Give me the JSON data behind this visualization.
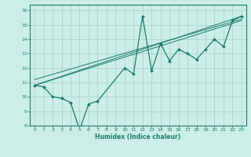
{
  "xlabel": "Humidex (Indice chaleur)",
  "ylabel": "",
  "bg_color": "#cceee8",
  "line_color": "#1a7a6a",
  "grid_color": "#aad4cc",
  "xlim": [
    -0.5,
    23.5
  ],
  "ylim": [
    8,
    16.4
  ],
  "xticks": [
    0,
    1,
    2,
    3,
    4,
    5,
    6,
    7,
    8,
    9,
    10,
    11,
    12,
    13,
    14,
    15,
    16,
    17,
    18,
    19,
    20,
    21,
    22,
    23
  ],
  "yticks": [
    8,
    9,
    10,
    11,
    12,
    13,
    14,
    15,
    16
  ],
  "curve_x": [
    0,
    1,
    2,
    3,
    4,
    5,
    6,
    7,
    10,
    11,
    12,
    13,
    14,
    15,
    16,
    17,
    18,
    19,
    20,
    21,
    22,
    23
  ],
  "curve_y": [
    10.8,
    10.7,
    10.0,
    9.9,
    9.6,
    7.7,
    9.5,
    9.7,
    12.0,
    11.6,
    15.6,
    11.8,
    13.7,
    12.5,
    13.3,
    13.0,
    12.6,
    13.3,
    14.0,
    13.5,
    15.3,
    15.6
  ],
  "line1_x": [
    0,
    23
  ],
  "line1_y": [
    10.8,
    15.3
  ],
  "line2_x": [
    0,
    23
  ],
  "line2_y": [
    10.8,
    15.6
  ],
  "line3_x": [
    0,
    23
  ],
  "line3_y": [
    11.2,
    15.4
  ]
}
